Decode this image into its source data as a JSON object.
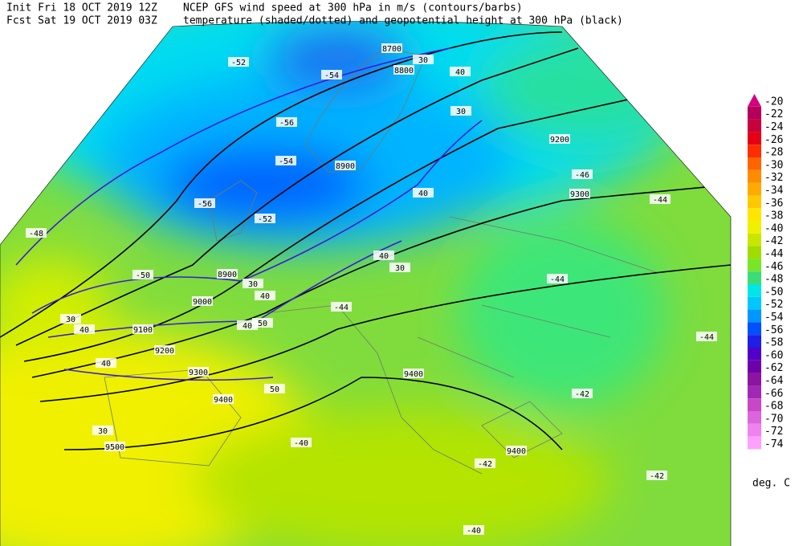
{
  "header": {
    "init": "Init  Fri 18 OCT 2019 12Z",
    "fcst": "Fcst Sat 19 OCT 2019 03Z",
    "title_line1": "NCEP GFS wind speed at 300 hPa in m/s (contours/barbs)",
    "title_line2": "temperature (shaded/dotted) and geopotential height at 300 hPa (black)"
  },
  "colorbar": {
    "unit": "deg. C",
    "levels": [
      -20,
      -22,
      -24,
      -26,
      -28,
      -30,
      -32,
      -34,
      -36,
      -38,
      -40,
      -42,
      -44,
      -46,
      -48,
      -50,
      -52,
      -54,
      -56,
      -58,
      -60,
      -62,
      -64,
      -66,
      -68,
      -70,
      -72,
      -74
    ],
    "colors": [
      "#d4007e",
      "#b4005a",
      "#c8003c",
      "#e60014",
      "#ff2d00",
      "#ff6400",
      "#ff8c00",
      "#ffaa00",
      "#ffc800",
      "#ffe600",
      "#f0f000",
      "#c8e600",
      "#a0dc00",
      "#78e628",
      "#3cdc78",
      "#00e6e6",
      "#00c8ff",
      "#0096ff",
      "#0050ff",
      "#1e1ee6",
      "#5000c8",
      "#6e00aa",
      "#8c14a0",
      "#a028b4",
      "#c846c8",
      "#dc64dc",
      "#f082f0",
      "#ffa0ff"
    ]
  },
  "map_labels": {
    "height": [
      "8700",
      "8800",
      "8900",
      "8900",
      "9000",
      "9100",
      "9200",
      "9300",
      "9400",
      "9500",
      "9200",
      "9300",
      "9400",
      "9400"
    ],
    "wind": [
      "30",
      "40",
      "30",
      "40",
      "40",
      "30",
      "30",
      "40",
      "40",
      "50",
      "30",
      "40",
      "40",
      "50",
      "30"
    ],
    "temperature": [
      "-52",
      "-54",
      "-56",
      "-54",
      "-56",
      "-52",
      "-50",
      "-48",
      "-46",
      "-44",
      "-44",
      "-44",
      "-42",
      "-42",
      "-40",
      "-40",
      "-42",
      "-44"
    ]
  }
}
